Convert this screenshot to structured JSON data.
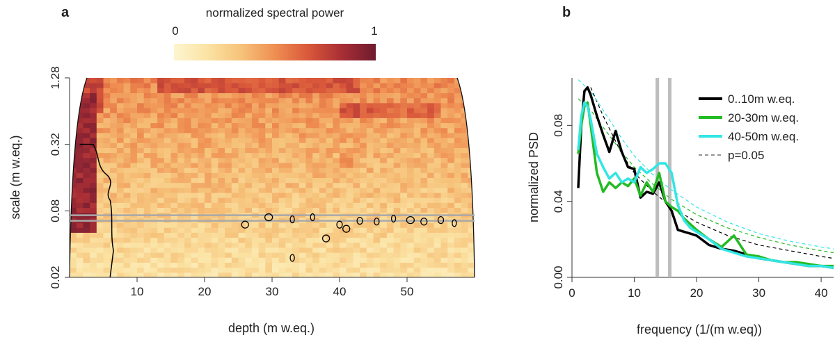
{
  "chart_data": [
    {
      "panel_label": "a",
      "type": "heatmap",
      "colorbar": {
        "title": "normalized spectral power",
        "min_label": "0",
        "max_label": "1",
        "colors": [
          "#fdf5d0",
          "#fbe3a4",
          "#f6c27a",
          "#ef8f52",
          "#d9573a",
          "#a82e35",
          "#6e1b2f"
        ]
      },
      "xlabel": "depth (m w.eq.)",
      "ylabel": "scale (m w.eq.)",
      "xlim": [
        0,
        60
      ],
      "ylim_scale": [
        0.02,
        1.28
      ],
      "log_scale_y": true,
      "xticks": [
        10,
        20,
        30,
        40,
        50
      ],
      "xtick_labels": [
        "10",
        "20",
        "30",
        "40",
        "50"
      ],
      "yticks": [
        0.02,
        0.08,
        0.32,
        1.28
      ],
      "ytick_labels": [
        "0.02",
        "0.08",
        "0.32",
        "1.28"
      ],
      "reference_band_scales": [
        0.065,
        0.073
      ],
      "reference_band_color": "#a9a9a9",
      "high_power_regions": [
        {
          "x": [
            0.5,
            3.5
          ],
          "y": [
            0.05,
            0.9
          ],
          "level": 0.95
        },
        {
          "x": [
            2,
            5
          ],
          "y": [
            0.6,
            1.28
          ],
          "level": 0.8
        },
        {
          "x": [
            13,
            43
          ],
          "y": [
            0.9,
            1.28
          ],
          "level": 0.75
        },
        {
          "x": [
            40,
            45
          ],
          "y": [
            0.55,
            0.8
          ],
          "level": 0.75
        },
        {
          "x": [
            45,
            55
          ],
          "y": [
            0.55,
            0.75
          ],
          "level": 0.7
        },
        {
          "x": [
            40,
            42
          ],
          "y": [
            0.2,
            0.26
          ],
          "level": 0.6
        }
      ]
    },
    {
      "panel_label": "b",
      "type": "line",
      "xlabel": "frequency (1/(m w.eq))",
      "ylabel": "normalized PSD",
      "xlim": [
        0,
        42
      ],
      "ylim": [
        0,
        0.105
      ],
      "xticks": [
        0,
        10,
        20,
        30,
        40
      ],
      "xtick_labels": [
        "0",
        "10",
        "20",
        "30",
        "40"
      ],
      "yticks": [
        0,
        0.04,
        0.08
      ],
      "ytick_labels": [
        "0.00",
        "0.04",
        "0.08"
      ],
      "vertical_lines": [
        13.7,
        15.7
      ],
      "vertical_line_color": "#bdbdbd",
      "series": [
        {
          "name": "0..10m w.eq.",
          "color": "#000000",
          "x": [
            1,
            1.5,
            2,
            2.5,
            3,
            4,
            5,
            6,
            7,
            8,
            9,
            10,
            11,
            12,
            13,
            14,
            15,
            16,
            17,
            18,
            19,
            20,
            22,
            24,
            26,
            28,
            30,
            32,
            34,
            36,
            38,
            40,
            42
          ],
          "y": [
            0.047,
            0.08,
            0.098,
            0.1,
            0.096,
            0.085,
            0.075,
            0.066,
            0.077,
            0.066,
            0.058,
            0.057,
            0.042,
            0.045,
            0.044,
            0.05,
            0.04,
            0.035,
            0.025,
            0.024,
            0.023,
            0.022,
            0.017,
            0.015,
            0.014,
            0.012,
            0.01,
            0.009,
            0.008,
            0.007,
            0.006,
            0.006,
            0.005
          ]
        },
        {
          "name": "20-30m w.eq.",
          "color": "#22bb22",
          "x": [
            1,
            1.5,
            2,
            2.5,
            3,
            4,
            5,
            6,
            7,
            8,
            9,
            10,
            11,
            12,
            13,
            14,
            15,
            16,
            17,
            18,
            19,
            20,
            22,
            24,
            26,
            28,
            30,
            32,
            34,
            36,
            38,
            40,
            42
          ],
          "y": [
            0.065,
            0.08,
            0.09,
            0.092,
            0.08,
            0.055,
            0.045,
            0.05,
            0.047,
            0.05,
            0.048,
            0.052,
            0.043,
            0.05,
            0.045,
            0.055,
            0.04,
            0.037,
            0.035,
            0.031,
            0.028,
            0.025,
            0.02,
            0.016,
            0.022,
            0.012,
            0.011,
            0.009,
            0.008,
            0.008,
            0.007,
            0.006,
            0.006
          ]
        },
        {
          "name": "40-50m w.eq.",
          "color": "#33e5e5",
          "x": [
            1,
            1.5,
            2,
            2.5,
            3,
            4,
            5,
            6,
            7,
            8,
            9,
            10,
            11,
            12,
            13,
            14,
            15,
            16,
            17,
            18,
            19,
            20,
            22,
            24,
            26,
            28,
            30,
            32,
            34,
            36,
            38,
            40,
            42
          ],
          "y": [
            0.067,
            0.085,
            0.092,
            0.09,
            0.083,
            0.065,
            0.058,
            0.052,
            0.055,
            0.05,
            0.052,
            0.05,
            0.058,
            0.055,
            0.057,
            0.06,
            0.06,
            0.055,
            0.038,
            0.03,
            0.026,
            0.024,
            0.02,
            0.015,
            0.013,
            0.011,
            0.01,
            0.009,
            0.008,
            0.007,
            0.006,
            0.006,
            0.005
          ]
        }
      ],
      "significance": {
        "name": "p=0.05",
        "color": "#555555",
        "curves": [
          {
            "color": "#000000",
            "x": [
              3,
              5,
              8,
              10,
              13,
              16,
              20,
              25,
              30,
              35,
              40,
              42
            ],
            "y": [
              0.1,
              0.085,
              0.065,
              0.055,
              0.045,
              0.037,
              0.029,
              0.022,
              0.017,
              0.014,
              0.011,
              0.01
            ]
          },
          {
            "color": "#22bb22",
            "x": [
              1,
              3,
              5,
              8,
              10,
              13,
              16,
              20,
              25,
              30,
              35,
              40,
              42
            ],
            "y": [
              0.094,
              0.088,
              0.079,
              0.066,
              0.058,
              0.049,
              0.041,
              0.033,
              0.026,
              0.021,
              0.017,
              0.014,
              0.013
            ]
          },
          {
            "color": "#33e5e5",
            "x": [
              1,
              3,
              5,
              8,
              10,
              13,
              16,
              20,
              25,
              30,
              35,
              40,
              42
            ],
            "y": [
              0.104,
              0.098,
              0.088,
              0.073,
              0.064,
              0.054,
              0.046,
              0.037,
              0.029,
              0.023,
              0.019,
              0.016,
              0.015
            ]
          }
        ]
      }
    }
  ]
}
